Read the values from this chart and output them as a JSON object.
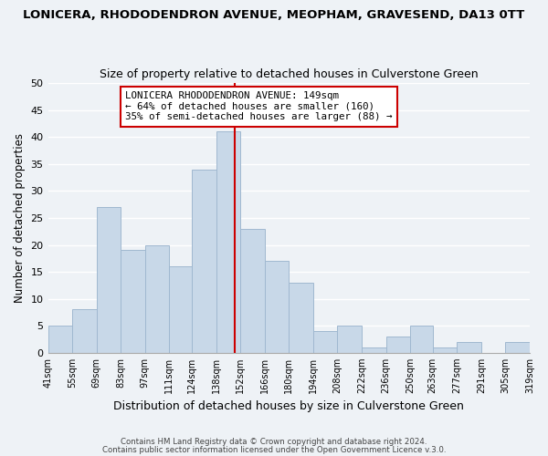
{
  "title": "LONICERA, RHODODENDRON AVENUE, MEOPHAM, GRAVESEND, DA13 0TT",
  "subtitle": "Size of property relative to detached houses in Culverstone Green",
  "xlabel": "Distribution of detached houses by size in Culverstone Green",
  "ylabel": "Number of detached properties",
  "bins": [
    41,
    55,
    69,
    83,
    97,
    111,
    124,
    138,
    152,
    166,
    180,
    194,
    208,
    222,
    236,
    250,
    263,
    277,
    291,
    305,
    319
  ],
  "counts": [
    5,
    8,
    27,
    19,
    20,
    16,
    34,
    41,
    23,
    17,
    13,
    4,
    5,
    1,
    3,
    5,
    1,
    2,
    0,
    2
  ],
  "bar_color": "#c8d8e8",
  "bar_edgecolor": "#a0b8d0",
  "vline_x": 149,
  "vline_color": "#cc0000",
  "ylim": [
    0,
    50
  ],
  "yticks": [
    0,
    5,
    10,
    15,
    20,
    25,
    30,
    35,
    40,
    45,
    50
  ],
  "annotation_title": "LONICERA RHODODENDRON AVENUE: 149sqm",
  "annotation_line1": "← 64% of detached houses are smaller (160)",
  "annotation_line2": "35% of semi-detached houses are larger (88) →",
  "annotation_box_color": "#ffffff",
  "annotation_box_edgecolor": "#cc0000",
  "footer1": "Contains HM Land Registry data © Crown copyright and database right 2024.",
  "footer2": "Contains public sector information licensed under the Open Government Licence v.3.0.",
  "background_color": "#eef2f6",
  "grid_color": "#ffffff"
}
